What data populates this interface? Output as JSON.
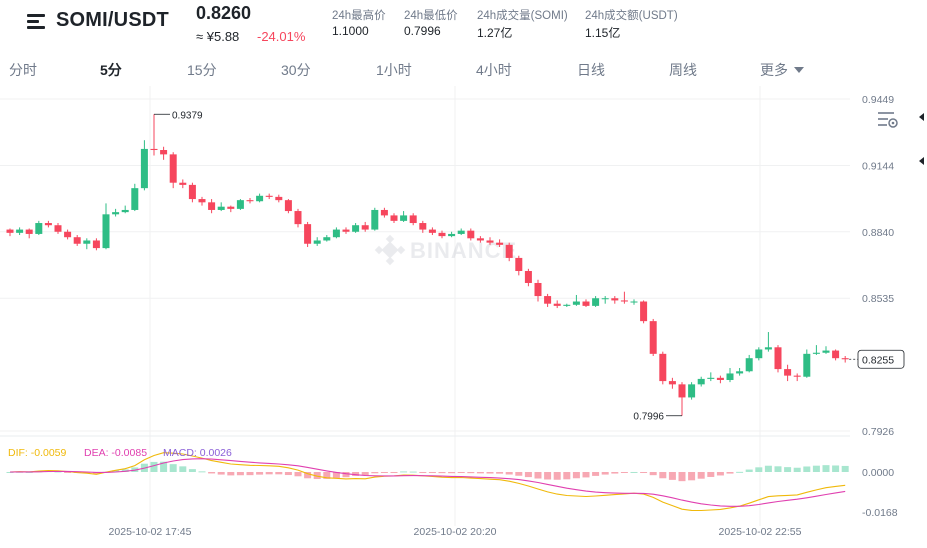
{
  "header": {
    "pair": "SOMI/USDT",
    "price": "0.8260",
    "cny_price": "≈ ¥5.88",
    "change_pct": "-24.01%",
    "stats": [
      {
        "label": "24h最高价",
        "value": "1.1000"
      },
      {
        "label": "24h最低价",
        "value": "0.7996"
      },
      {
        "label": "24h成交量(SOMI)",
        "value": "1.27亿"
      },
      {
        "label": "24h成交额(USDT)",
        "value": "1.15亿"
      }
    ]
  },
  "tabs": [
    "分时",
    "5分",
    "15分",
    "30分",
    "1小时",
    "4小时",
    "日线",
    "周线"
  ],
  "active_tab": "5分",
  "more_label": "更多",
  "watermark": "BINANCE",
  "colors": {
    "up": "#2ebd85",
    "down": "#f6465d",
    "dif": "#f0b90b",
    "dea": "#e040b0",
    "text": "#1e2329",
    "muted": "#707a8a"
  },
  "chart_data": {
    "type": "candlestick",
    "price_axis_ticks": [
      "0.9449",
      "0.9144",
      "0.8840",
      "0.8535",
      "0.7926"
    ],
    "current_price_label": "0.8255",
    "high_marker": "0.9379",
    "low_marker": "0.7996",
    "time_labels": [
      "2025-10-02 17:45",
      "2025-10-02 20:20",
      "2025-10-02 22:55"
    ],
    "candles": [
      [
        0.885,
        0.8835,
        0.8855,
        0.882
      ],
      [
        0.8835,
        0.885,
        0.886,
        0.8825
      ],
      [
        0.885,
        0.883,
        0.8855,
        0.881
      ],
      [
        0.883,
        0.888,
        0.889,
        0.8825
      ],
      [
        0.888,
        0.887,
        0.889,
        0.886
      ],
      [
        0.887,
        0.884,
        0.888,
        0.883
      ],
      [
        0.884,
        0.8815,
        0.885,
        0.8805
      ],
      [
        0.8815,
        0.8785,
        0.8825,
        0.8775
      ],
      [
        0.8785,
        0.88,
        0.881,
        0.876
      ],
      [
        0.88,
        0.8765,
        0.881,
        0.8755
      ],
      [
        0.8765,
        0.892,
        0.897,
        0.876
      ],
      [
        0.892,
        0.893,
        0.8945,
        0.891
      ],
      [
        0.893,
        0.894,
        0.896,
        0.8925
      ],
      [
        0.894,
        0.904,
        0.906,
        0.8935
      ],
      [
        0.904,
        0.922,
        0.926,
        0.903
      ],
      [
        0.922,
        0.9215,
        0.9379,
        0.919
      ],
      [
        0.9215,
        0.9195,
        0.923,
        0.917
      ],
      [
        0.9195,
        0.9065,
        0.9205,
        0.904
      ],
      [
        0.9065,
        0.9055,
        0.908,
        0.904
      ],
      [
        0.9055,
        0.899,
        0.9065,
        0.8975
      ],
      [
        0.899,
        0.8975,
        0.9,
        0.896
      ],
      [
        0.8975,
        0.894,
        0.899,
        0.8925
      ],
      [
        0.894,
        0.8955,
        0.8975,
        0.8935
      ],
      [
        0.8955,
        0.8945,
        0.896,
        0.893
      ],
      [
        0.8945,
        0.8985,
        0.899,
        0.894
      ],
      [
        0.8985,
        0.898,
        0.8995,
        0.897
      ],
      [
        0.898,
        0.9005,
        0.9015,
        0.8975
      ],
      [
        0.9005,
        0.9,
        0.9015,
        0.899
      ],
      [
        0.9,
        0.8985,
        0.901,
        0.8975
      ],
      [
        0.8985,
        0.8935,
        0.899,
        0.8925
      ],
      [
        0.8935,
        0.8875,
        0.8945,
        0.886
      ],
      [
        0.8875,
        0.8785,
        0.8885,
        0.877
      ],
      [
        0.8785,
        0.88,
        0.8815,
        0.8775
      ],
      [
        0.88,
        0.8815,
        0.8825,
        0.8795
      ],
      [
        0.8815,
        0.885,
        0.886,
        0.881
      ],
      [
        0.885,
        0.884,
        0.886,
        0.883
      ],
      [
        0.884,
        0.887,
        0.888,
        0.8835
      ],
      [
        0.887,
        0.885,
        0.8885,
        0.884
      ],
      [
        0.885,
        0.894,
        0.895,
        0.8845
      ],
      [
        0.894,
        0.8915,
        0.895,
        0.8905
      ],
      [
        0.8915,
        0.889,
        0.8925,
        0.888
      ],
      [
        0.889,
        0.8915,
        0.8935,
        0.8885
      ],
      [
        0.8915,
        0.888,
        0.8925,
        0.887
      ],
      [
        0.888,
        0.885,
        0.889,
        0.8835
      ],
      [
        0.885,
        0.8835,
        0.886,
        0.8825
      ],
      [
        0.8835,
        0.882,
        0.8845,
        0.881
      ],
      [
        0.882,
        0.883,
        0.884,
        0.8815
      ],
      [
        0.883,
        0.8845,
        0.8855,
        0.8825
      ],
      [
        0.8845,
        0.881,
        0.8855,
        0.88
      ],
      [
        0.881,
        0.88,
        0.882,
        0.879
      ],
      [
        0.88,
        0.879,
        0.8815,
        0.878
      ],
      [
        0.879,
        0.878,
        0.8805,
        0.877
      ],
      [
        0.878,
        0.872,
        0.879,
        0.8705
      ],
      [
        0.872,
        0.866,
        0.873,
        0.864
      ],
      [
        0.866,
        0.8605,
        0.867,
        0.859
      ],
      [
        0.8605,
        0.8545,
        0.862,
        0.852
      ],
      [
        0.8545,
        0.851,
        0.8555,
        0.8495
      ],
      [
        0.851,
        0.85,
        0.8525,
        0.849
      ],
      [
        0.85,
        0.8505,
        0.851,
        0.8495
      ],
      [
        0.8505,
        0.852,
        0.855,
        0.85
      ],
      [
        0.852,
        0.85,
        0.853,
        0.8495
      ],
      [
        0.85,
        0.8535,
        0.8545,
        0.8495
      ],
      [
        0.8535,
        0.8535,
        0.8545,
        0.851
      ],
      [
        0.8535,
        0.8525,
        0.8545,
        0.851
      ],
      [
        0.8525,
        0.852,
        0.8565,
        0.851
      ],
      [
        0.852,
        0.852,
        0.853,
        0.8505
      ],
      [
        0.852,
        0.843,
        0.8525,
        0.842
      ],
      [
        0.843,
        0.828,
        0.844,
        0.827
      ],
      [
        0.828,
        0.8155,
        0.829,
        0.814
      ],
      [
        0.8155,
        0.814,
        0.817,
        0.812
      ],
      [
        0.814,
        0.808,
        0.815,
        0.7996
      ],
      [
        0.808,
        0.814,
        0.815,
        0.807
      ],
      [
        0.814,
        0.8165,
        0.8175,
        0.813
      ],
      [
        0.8165,
        0.817,
        0.8195,
        0.8155
      ],
      [
        0.817,
        0.816,
        0.818,
        0.8145
      ],
      [
        0.816,
        0.819,
        0.8215,
        0.815
      ],
      [
        0.819,
        0.82,
        0.8215,
        0.818
      ],
      [
        0.82,
        0.826,
        0.8275,
        0.8195
      ],
      [
        0.826,
        0.83,
        0.831,
        0.825
      ],
      [
        0.83,
        0.831,
        0.838,
        0.829
      ],
      [
        0.831,
        0.821,
        0.832,
        0.8195
      ],
      [
        0.821,
        0.818,
        0.823,
        0.8155
      ],
      [
        0.818,
        0.8175,
        0.819,
        0.8155
      ],
      [
        0.8175,
        0.828,
        0.83,
        0.817
      ],
      [
        0.828,
        0.8285,
        0.832,
        0.8275
      ],
      [
        0.8285,
        0.8295,
        0.8315,
        0.828
      ],
      [
        0.8295,
        0.826,
        0.83,
        0.825
      ],
      [
        0.826,
        0.8255,
        0.827,
        0.824
      ]
    ],
    "macd": {
      "dif_label": "DIF: -0.0059",
      "dea_label": "DEA: -0.0085",
      "macd_label": "MACD: 0.0026",
      "axis_ticks": [
        "0.0000",
        "-0.0168"
      ]
    }
  }
}
